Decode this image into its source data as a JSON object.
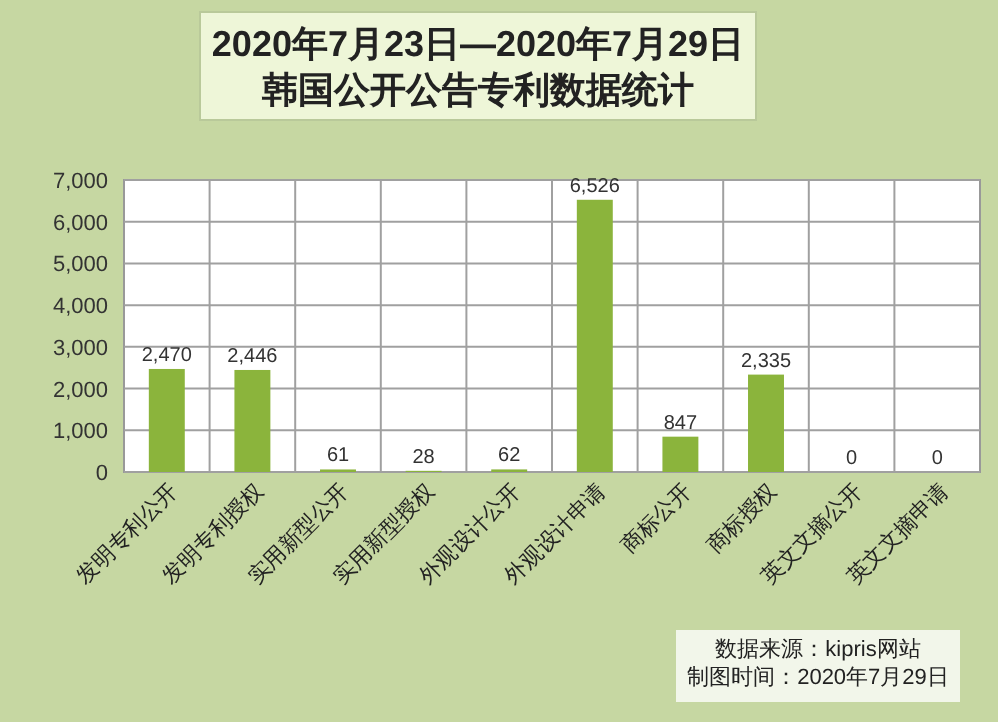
{
  "chart_data": {
    "type": "bar",
    "title": "2020年7月23日—2020年7月29日",
    "subtitle": "韩国公开公告专利数据统计",
    "categories": [
      "发明专利公开",
      "发明专利授权",
      "实用新型公开",
      "实用新型授权",
      "外观设计公开",
      "外观设计申请",
      "商标公开",
      "商标授权",
      "英文文摘公开",
      "英文文摘申请"
    ],
    "values": [
      2470,
      2446,
      61,
      28,
      62,
      6526,
      847,
      2335,
      0,
      0
    ],
    "color": "#8bb43c",
    "ylim": [
      0,
      7000
    ],
    "yticks": [
      {
        "value": 0,
        "label": "0"
      },
      {
        "value": 1000,
        "label": "1,000"
      },
      {
        "value": 2000,
        "label": "2,000"
      },
      {
        "value": 3000,
        "label": "3,000"
      },
      {
        "value": 4000,
        "label": "4,000"
      },
      {
        "value": 5000,
        "label": "5,000"
      },
      {
        "value": 6000,
        "label": "6,000"
      },
      {
        "value": 7000,
        "label": "7,000"
      }
    ],
    "value_labels": [
      "2,470",
      "2,446",
      "61",
      "28",
      "62",
      "6,526",
      "847",
      "2,335",
      "0",
      "0"
    ],
    "grid": true,
    "annotations": [
      "数据来源：kipris网站",
      "制图时间：2020年7月29日"
    ]
  }
}
